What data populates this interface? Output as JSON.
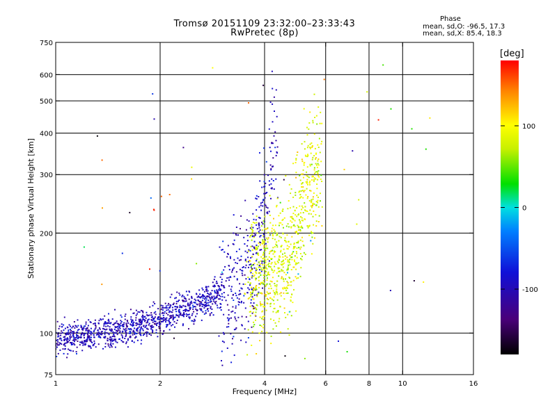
{
  "chart_data": {
    "type": "scatter",
    "title": "Tromsø 20151109 23:32:00–23:33:43",
    "subtitle": "RwPretec (8p)",
    "xlabel": "Frequency [MHz]",
    "ylabel": "Stationary phase Virtual Height [km]",
    "x_scale": "log",
    "y_scale": "log",
    "xlim": [
      1,
      16
    ],
    "ylim": [
      75,
      750
    ],
    "x_ticks": [
      1,
      2,
      4,
      6,
      8,
      10,
      16
    ],
    "x_tick_labels": [
      "1",
      "2",
      "4",
      "6",
      "8",
      "10",
      "16"
    ],
    "y_ticks": [
      75,
      100,
      200,
      300,
      400,
      500,
      600,
      750
    ],
    "y_tick_labels": [
      "75",
      "100",
      "200",
      "300",
      "400",
      "500",
      "600",
      "750"
    ],
    "grid": true,
    "colorbar": {
      "label": "[deg]",
      "range": [
        -180,
        180
      ],
      "ticks": [
        100,
        0,
        -100
      ],
      "tick_labels": [
        "100",
        "0",
        "-100"
      ]
    },
    "phase_info": {
      "title": "Phase",
      "o_line": "mean, sd,O: -96.5, 17.3",
      "x_line": "mean, sd,X:  85.4, 18.3"
    },
    "series": [
      {
        "mode": "O",
        "phase_mean": -96.5,
        "phase_sd": 17.3,
        "trace": [
          {
            "x": 1.0,
            "y": 95
          },
          {
            "x": 1.2,
            "y": 98
          },
          {
            "x": 1.4,
            "y": 101
          },
          {
            "x": 1.6,
            "y": 103
          },
          {
            "x": 1.8,
            "y": 106
          },
          {
            "x": 2.0,
            "y": 110
          },
          {
            "x": 2.3,
            "y": 118
          },
          {
            "x": 2.6,
            "y": 122
          },
          {
            "x": 2.8,
            "y": 128
          },
          {
            "x": 3.0,
            "y": 134
          },
          {
            "x": 3.3,
            "y": 140
          },
          {
            "x": 3.6,
            "y": 150
          },
          {
            "x": 3.8,
            "y": 175
          },
          {
            "x": 4.0,
            "y": 220
          },
          {
            "x": 4.1,
            "y": 270
          },
          {
            "x": 4.2,
            "y": 340
          },
          {
            "x": 4.3,
            "y": 400
          }
        ]
      },
      {
        "mode": "X",
        "phase_mean": 85.4,
        "phase_sd": 18.3,
        "trace": [
          {
            "x": 3.6,
            "y": 140
          },
          {
            "x": 4.0,
            "y": 150
          },
          {
            "x": 4.5,
            "y": 160
          },
          {
            "x": 4.8,
            "y": 180
          },
          {
            "x": 5.0,
            "y": 210
          },
          {
            "x": 5.2,
            "y": 260
          },
          {
            "x": 5.5,
            "y": 300
          },
          {
            "x": 5.8,
            "y": 300
          }
        ]
      }
    ]
  }
}
